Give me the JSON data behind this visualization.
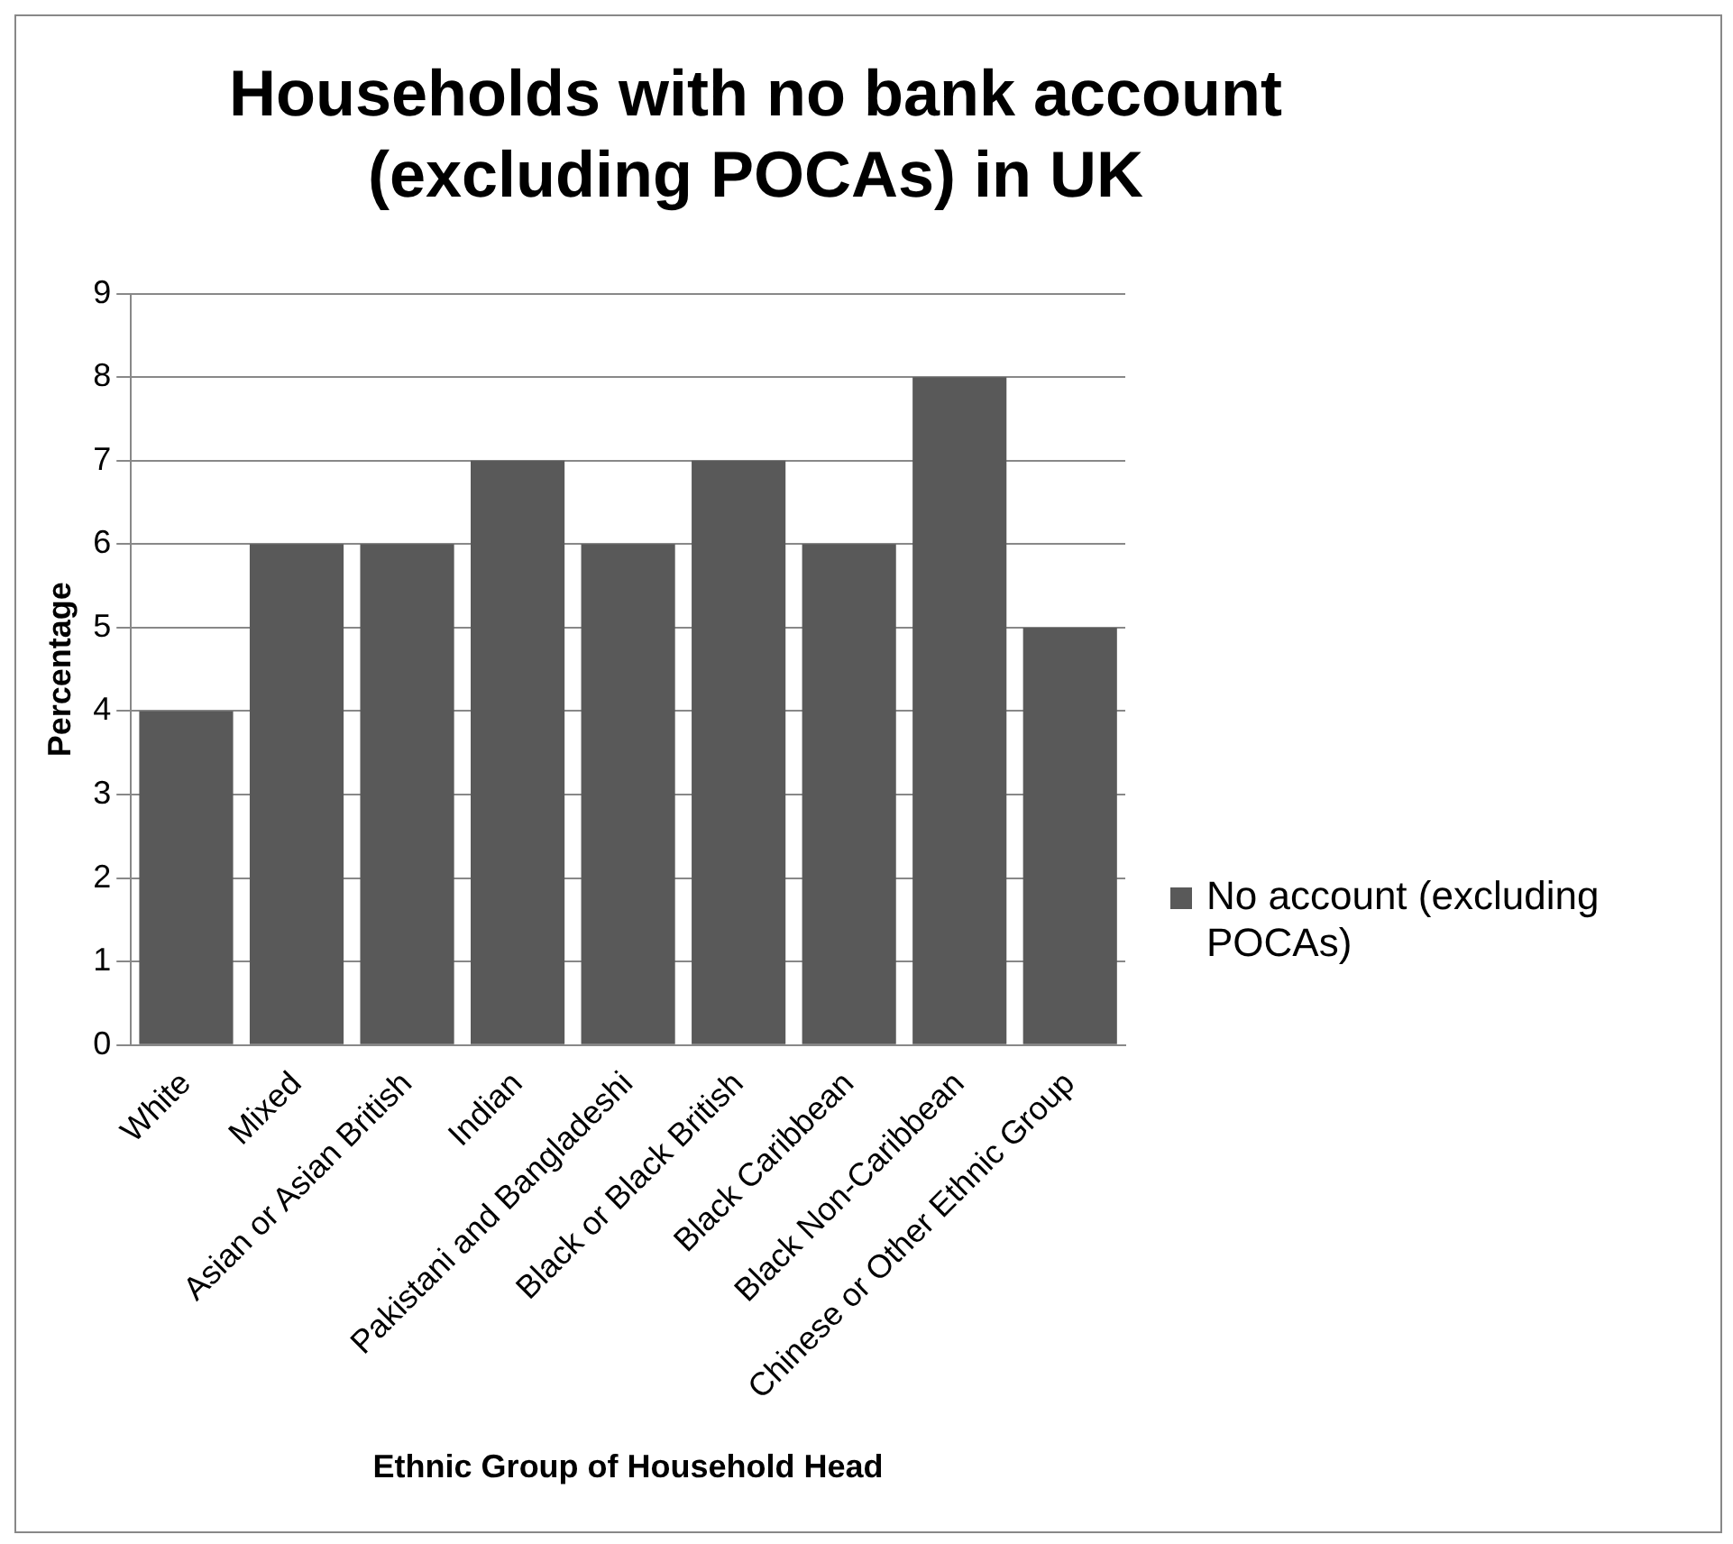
{
  "chart_data": {
    "type": "bar",
    "title": "Households with no bank account (excluding POCAs) in UK",
    "xlabel": "Ethnic Group of Household Head",
    "ylabel": "Percentage",
    "categories": [
      "White",
      "Mixed",
      "Asian or Asian British",
      "Indian",
      "Pakistani and Bangladeshi",
      "Black or Black British",
      "Black Caribbean",
      "Black Non-Caribbean",
      "Chinese or Other Ethnic Group"
    ],
    "series": [
      {
        "name": "No account (excluding POCAs)",
        "color": "#595959",
        "values": [
          4,
          6,
          6,
          7,
          6,
          7,
          6,
          8,
          5
        ]
      }
    ],
    "ylim": [
      0,
      9
    ],
    "yticks": [
      0,
      1,
      2,
      3,
      4,
      5,
      6,
      7,
      8,
      9
    ],
    "grid": "y",
    "legend": "right"
  }
}
